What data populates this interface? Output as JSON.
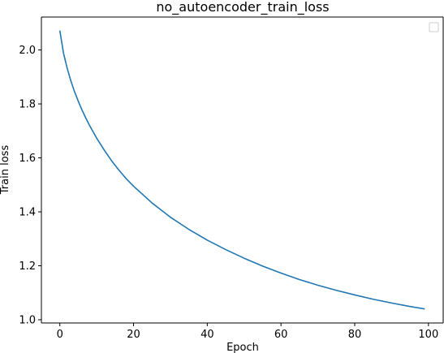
{
  "chart_data": {
    "type": "line",
    "title": "no_autoencoder_train_loss",
    "xlabel": "Epoch",
    "ylabel": "Train loss",
    "xlim": [
      -5,
      104
    ],
    "ylim": [
      0.988,
      2.122
    ],
    "xticks": [
      0,
      20,
      40,
      60,
      80,
      100
    ],
    "yticks": [
      1.0,
      1.2,
      1.4,
      1.6,
      1.8,
      2.0
    ],
    "grid": false,
    "legend": "top-right",
    "line_color": "#1f77b4",
    "series": [
      {
        "x": [
          0,
          1,
          2,
          3,
          4,
          5,
          6,
          7,
          8,
          9,
          10,
          12,
          14,
          16,
          18,
          20,
          25,
          30,
          35,
          40,
          45,
          50,
          55,
          60,
          65,
          70,
          75,
          80,
          85,
          90,
          95,
          99
        ],
        "values": [
          2.072,
          1.988,
          1.932,
          1.885,
          1.845,
          1.81,
          1.778,
          1.749,
          1.722,
          1.697,
          1.673,
          1.63,
          1.59,
          1.555,
          1.523,
          1.495,
          1.433,
          1.38,
          1.335,
          1.295,
          1.26,
          1.228,
          1.199,
          1.173,
          1.149,
          1.128,
          1.109,
          1.092,
          1.076,
          1.062,
          1.049,
          1.04
        ]
      }
    ]
  }
}
